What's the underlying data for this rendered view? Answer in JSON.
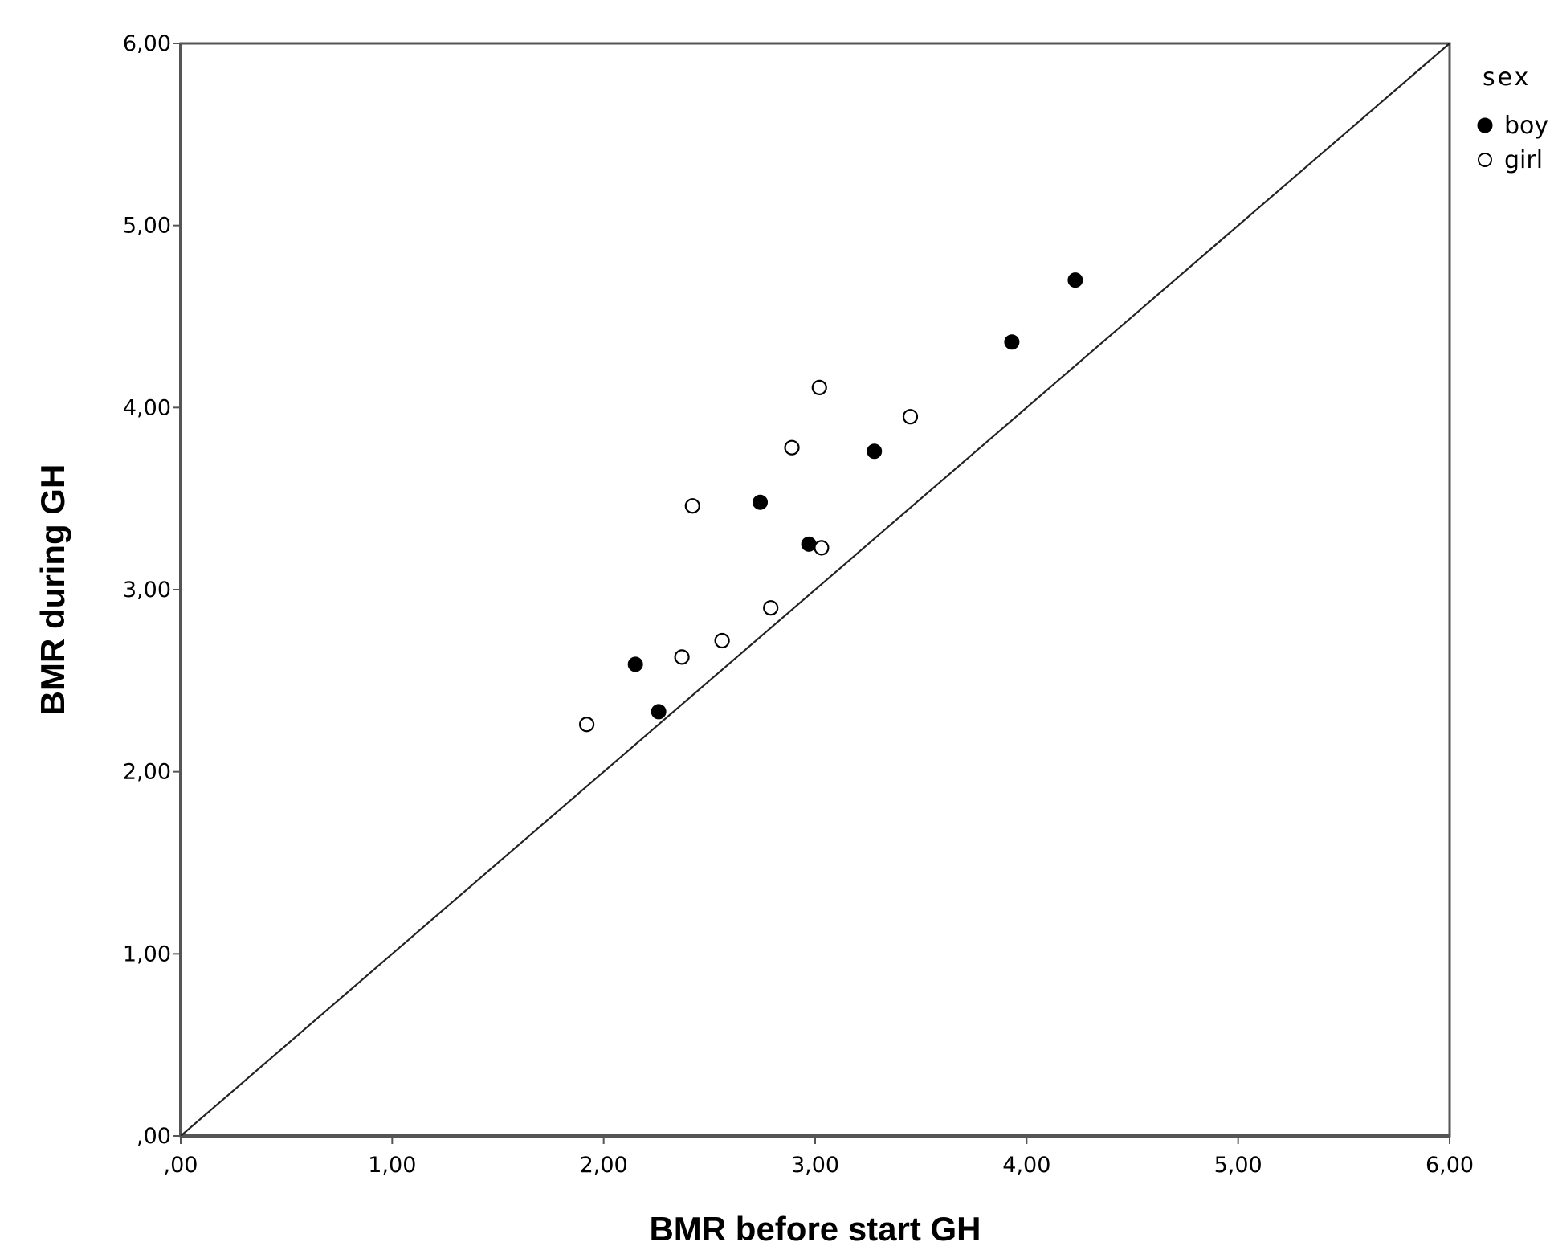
{
  "chart_data": {
    "type": "scatter",
    "xlabel": "BMR before start GH",
    "ylabel": "BMR during GH",
    "xlim": [
      0,
      6
    ],
    "ylim": [
      0,
      6
    ],
    "xticks": [
      ",00",
      "1,00",
      "2,00",
      "3,00",
      "4,00",
      "5,00",
      "6,00"
    ],
    "yticks": [
      ",00",
      "1,00",
      "2,00",
      "3,00",
      "4,00",
      "5,00",
      "6,00"
    ],
    "grid": false,
    "reference_line": "y = x",
    "legend": {
      "title": "sex",
      "position": "right"
    },
    "series": [
      {
        "name": "boy",
        "marker": "filled-circle",
        "color": "#000000",
        "points": [
          {
            "x": 2.15,
            "y": 2.59
          },
          {
            "x": 2.26,
            "y": 2.33
          },
          {
            "x": 2.74,
            "y": 3.48
          },
          {
            "x": 2.97,
            "y": 3.25
          },
          {
            "x": 3.28,
            "y": 3.76
          },
          {
            "x": 3.93,
            "y": 4.36
          },
          {
            "x": 4.23,
            "y": 4.7
          }
        ]
      },
      {
        "name": "girl",
        "marker": "open-circle",
        "color": "#000000",
        "points": [
          {
            "x": 1.92,
            "y": 2.26
          },
          {
            "x": 2.37,
            "y": 2.63
          },
          {
            "x": 2.42,
            "y": 3.46
          },
          {
            "x": 2.56,
            "y": 2.72
          },
          {
            "x": 2.79,
            "y": 2.9
          },
          {
            "x": 2.89,
            "y": 3.78
          },
          {
            "x": 3.02,
            "y": 4.11
          },
          {
            "x": 3.03,
            "y": 3.23
          },
          {
            "x": 3.45,
            "y": 3.95
          }
        ]
      }
    ]
  }
}
